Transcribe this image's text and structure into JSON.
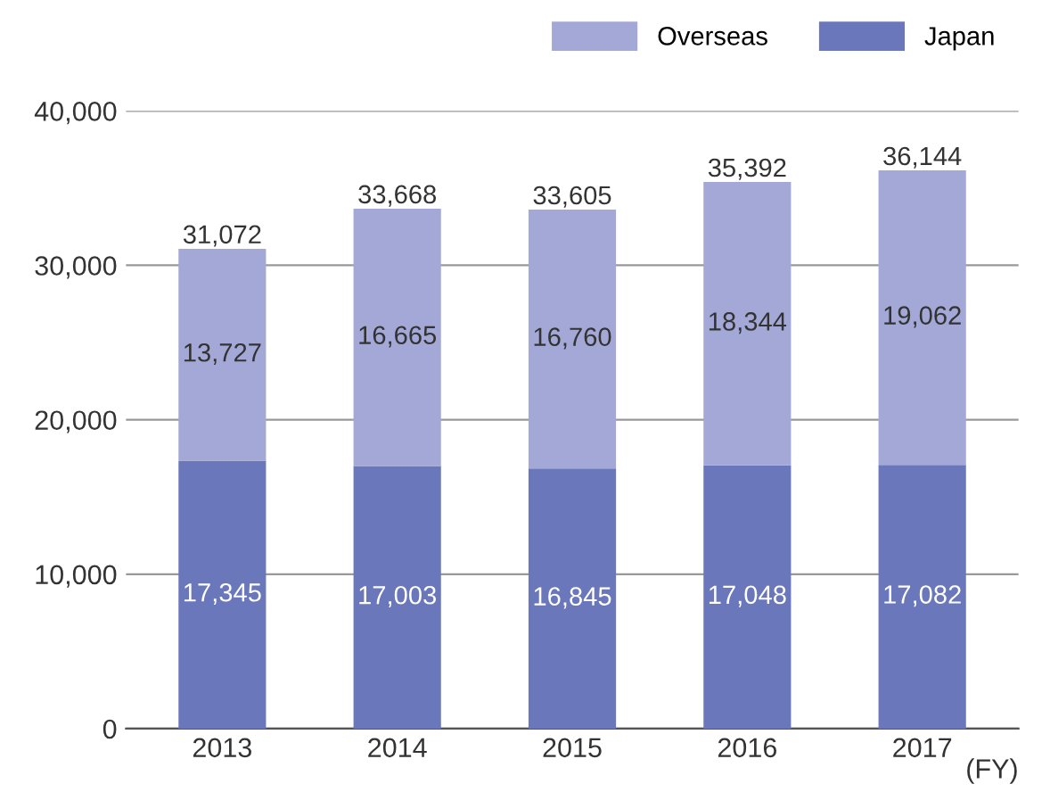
{
  "chart_data": {
    "type": "bar",
    "stacked": true,
    "categories": [
      "2013",
      "2014",
      "2015",
      "2016",
      "2017"
    ],
    "series": [
      {
        "name": "Japan",
        "color": "#6b77bb",
        "values": [
          17345,
          17003,
          16845,
          17048,
          17082
        ],
        "value_labels": [
          "17,345",
          "17,003",
          "16,845",
          "17,048",
          "17,082"
        ]
      },
      {
        "name": "Overseas",
        "color": "#a3a8d6",
        "values": [
          13727,
          16665,
          16760,
          18344,
          19062
        ],
        "value_labels": [
          "13,727",
          "16,665",
          "16,760",
          "18,344",
          "19,062"
        ]
      }
    ],
    "totals": [
      "31,072",
      "33,668",
      "33,605",
      "35,392",
      "36,144"
    ],
    "ylim": [
      0,
      40000
    ],
    "yticks": [
      0,
      {
        "value": 10000,
        "label": "10,000"
      },
      {
        "value": 20000,
        "label": "20,000"
      },
      {
        "value": 30000,
        "label": "30,000"
      },
      {
        "value": 40000,
        "label": "40,000"
      }
    ],
    "grid": "y",
    "legend": "top right",
    "annotations": [
      "(FY)"
    ]
  }
}
